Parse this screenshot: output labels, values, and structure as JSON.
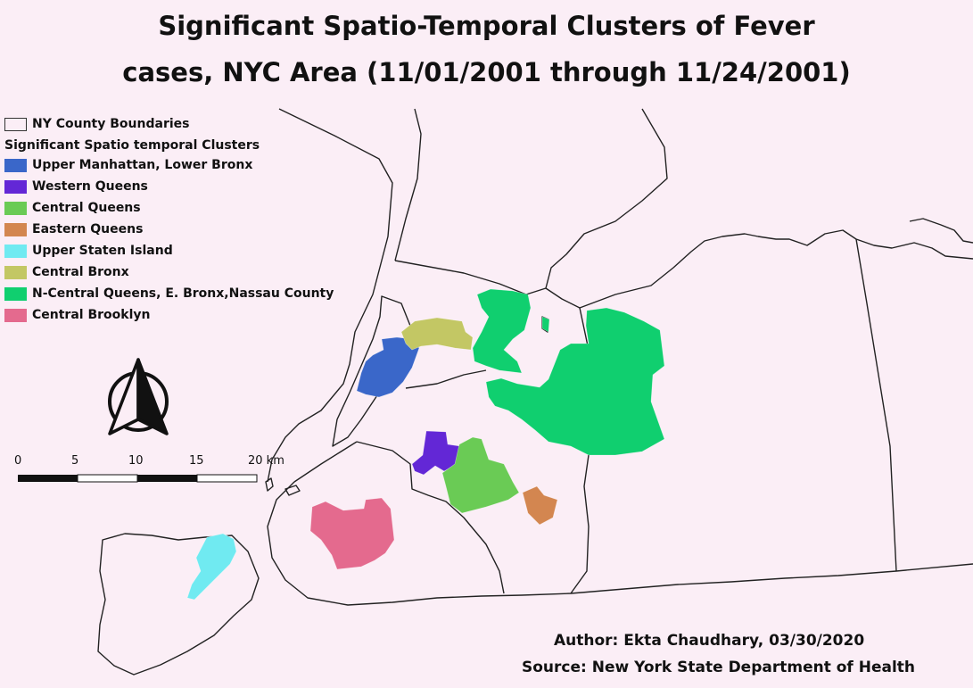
{
  "title": {
    "line1": "Significant Spatio-Temporal Clusters of Fever",
    "line2": "cases, NYC Area (11/01/2001 through 11/24/2001)"
  },
  "legend": {
    "boundary_label": "NY County Boundaries",
    "heading": "Significant Spatio temporal Clusters",
    "items": [
      {
        "label": "Upper Manhattan, Lower Bronx",
        "color": "#3a67c9"
      },
      {
        "label": "Western Queens",
        "color": "#6327d6"
      },
      {
        "label": "Central Queens",
        "color": "#6acb55"
      },
      {
        "label": "Eastern Queens",
        "color": "#d38650"
      },
      {
        "label": "Upper Staten Island",
        "color": "#70eaf1"
      },
      {
        "label": "Central Bronx",
        "color": "#c3c764"
      },
      {
        "label": "N-Central Queens, E. Bronx,Nassau County",
        "color": "#10cf6f"
      },
      {
        "label": "Central Brooklyn",
        "color": "#e46a8e"
      }
    ]
  },
  "scale_bar": {
    "ticks": [
      "0",
      "5",
      "10",
      "15",
      "20 km"
    ]
  },
  "north_arrow": {
    "icon": "north-arrow-icon"
  },
  "credits": {
    "author": "Author: Ekta Chaudhary, 03/30/2020",
    "source": "Source: New York State Department of Health"
  }
}
